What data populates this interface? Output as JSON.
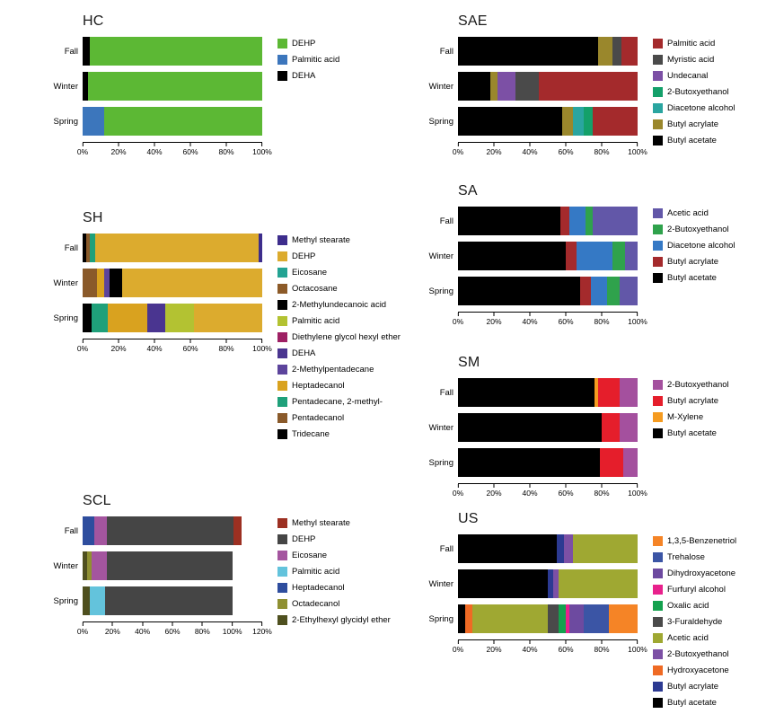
{
  "figure": {
    "background": "#ffffff"
  },
  "chart_data": [
    {
      "id": "HC",
      "type": "bar",
      "orientation": "horizontal-stacked",
      "title": "HC",
      "categories": [
        "Fall",
        "Winter",
        "Spring"
      ],
      "xlim": [
        0,
        100
      ],
      "xticks": [
        0,
        20,
        40,
        60,
        80,
        100
      ],
      "tick_suffix": "%",
      "legend_position": "right",
      "legend": [
        {
          "name": "DEHP",
          "color": "#5cb834"
        },
        {
          "name": "Palmitic acid",
          "color": "#3c76bc"
        },
        {
          "name": "DEHA",
          "color": "#000000"
        }
      ],
      "bars": [
        {
          "category": "Fall",
          "segments": [
            {
              "name": "DEHA",
              "value": 4
            },
            {
              "name": "DEHP",
              "value": 96
            }
          ]
        },
        {
          "category": "Winter",
          "segments": [
            {
              "name": "DEHA",
              "value": 3
            },
            {
              "name": "DEHP",
              "value": 97
            }
          ]
        },
        {
          "category": "Spring",
          "segments": [
            {
              "name": "Palmitic acid",
              "value": 12
            },
            {
              "name": "DEHP",
              "value": 88
            }
          ]
        }
      ]
    },
    {
      "id": "SAE",
      "type": "bar",
      "orientation": "horizontal-stacked",
      "title": "SAE",
      "categories": [
        "Fall",
        "Winter",
        "Spring"
      ],
      "xlim": [
        0,
        100
      ],
      "xticks": [
        0,
        20,
        40,
        60,
        80,
        100
      ],
      "tick_suffix": "%",
      "legend_position": "right",
      "legend": [
        {
          "name": "Palmitic acid",
          "color": "#a42a2c"
        },
        {
          "name": "Myristic acid",
          "color": "#4a4a4a"
        },
        {
          "name": "Undecanal",
          "color": "#7c50a5"
        },
        {
          "name": "2-Butoxyethanol",
          "color": "#14a06a"
        },
        {
          "name": "Diacetone alcohol",
          "color": "#2aa5a0"
        },
        {
          "name": "Butyl acrylate",
          "color": "#9a872c"
        },
        {
          "name": "Butyl acetate",
          "color": "#000000"
        }
      ],
      "bars": [
        {
          "category": "Fall",
          "segments": [
            {
              "name": "Butyl acetate",
              "value": 78
            },
            {
              "name": "Butyl acrylate",
              "value": 8
            },
            {
              "name": "Myristic acid",
              "value": 5
            },
            {
              "name": "Palmitic acid",
              "value": 9
            }
          ]
        },
        {
          "category": "Winter",
          "segments": [
            {
              "name": "Butyl acetate",
              "value": 18
            },
            {
              "name": "Butyl acrylate",
              "value": 4
            },
            {
              "name": "Undecanal",
              "value": 10
            },
            {
              "name": "Myristic acid",
              "value": 13
            },
            {
              "name": "Palmitic acid",
              "value": 55
            }
          ]
        },
        {
          "category": "Spring",
          "segments": [
            {
              "name": "Butyl acetate",
              "value": 58
            },
            {
              "name": "Butyl acrylate",
              "value": 6
            },
            {
              "name": "Diacetone alcohol",
              "value": 6
            },
            {
              "name": "2-Butoxyethanol",
              "value": 5
            },
            {
              "name": "Palmitic acid",
              "value": 25
            }
          ]
        }
      ]
    },
    {
      "id": "SH",
      "type": "bar",
      "orientation": "horizontal-stacked",
      "title": "SH",
      "categories": [
        "Fall",
        "Winter",
        "Spring"
      ],
      "xlim": [
        0,
        100
      ],
      "xticks": [
        0,
        20,
        40,
        60,
        80,
        100
      ],
      "tick_suffix": "%",
      "legend_position": "right",
      "legend": [
        {
          "name": "Methyl stearate",
          "color": "#3d2d8c"
        },
        {
          "name": "DEHP",
          "color": "#dcab2e"
        },
        {
          "name": "Eicosane",
          "color": "#23a393"
        },
        {
          "name": "Octacosane",
          "color": "#8c5a28"
        },
        {
          "name": "2-Methylundecanoic acid",
          "color": "#000000"
        },
        {
          "name": "Palmitic acid",
          "color": "#b3c232"
        },
        {
          "name": "Diethylene glycol hexyl ether",
          "color": "#9e2064"
        },
        {
          "name": "DEHA",
          "color": "#4a3590"
        },
        {
          "name": "2-Methylpentadecane",
          "color": "#5c449c"
        },
        {
          "name": "Heptadecanol",
          "color": "#d9a21f"
        },
        {
          "name": "Pentadecane, 2-methyl-",
          "color": "#1fa07a"
        },
        {
          "name": "Pentadecanol",
          "color": "#8a5a2a"
        },
        {
          "name": "Tridecane",
          "color": "#000000"
        }
      ],
      "bars": [
        {
          "category": "Fall",
          "segments": [
            {
              "name": "Tridecane",
              "value": 2
            },
            {
              "name": "Pentadecanol",
              "value": 2
            },
            {
              "name": "Pentadecane, 2-methyl-",
              "value": 3
            },
            {
              "name": "DEHP",
              "value": 91
            },
            {
              "name": "Methyl stearate",
              "value": 2
            }
          ]
        },
        {
          "category": "Winter",
          "segments": [
            {
              "name": "Pentadecanol",
              "value": 8
            },
            {
              "name": "Heptadecanol",
              "value": 4
            },
            {
              "name": "2-Methylpentadecane",
              "value": 3
            },
            {
              "name": "2-Methylundecanoic acid",
              "value": 7
            },
            {
              "name": "DEHP",
              "value": 78
            }
          ]
        },
        {
          "category": "Spring",
          "segments": [
            {
              "name": "Tridecane",
              "value": 5
            },
            {
              "name": "Pentadecane, 2-methyl-",
              "value": 9
            },
            {
              "name": "Heptadecanol",
              "value": 22
            },
            {
              "name": "DEHA",
              "value": 10
            },
            {
              "name": "Palmitic acid",
              "value": 16
            },
            {
              "name": "DEHP",
              "value": 38
            }
          ]
        }
      ]
    },
    {
      "id": "SA",
      "type": "bar",
      "orientation": "horizontal-stacked",
      "title": "SA",
      "categories": [
        "Fall",
        "Winter",
        "Spring"
      ],
      "xlim": [
        0,
        100
      ],
      "xticks": [
        0,
        20,
        40,
        60,
        80,
        100
      ],
      "tick_suffix": "%",
      "legend_position": "right",
      "legend": [
        {
          "name": "Acetic acid",
          "color": "#6257a8"
        },
        {
          "name": "2-Butoxyethanol",
          "color": "#2fa24c"
        },
        {
          "name": "Diacetone alcohol",
          "color": "#3579c5"
        },
        {
          "name": "Butyl acrylate",
          "color": "#a42a2c"
        },
        {
          "name": "Butyl acetate",
          "color": "#000000"
        }
      ],
      "bars": [
        {
          "category": "Fall",
          "segments": [
            {
              "name": "Butyl acetate",
              "value": 57
            },
            {
              "name": "Butyl acrylate",
              "value": 5
            },
            {
              "name": "Diacetone alcohol",
              "value": 9
            },
            {
              "name": "2-Butoxyethanol",
              "value": 4
            },
            {
              "name": "Acetic acid",
              "value": 25
            }
          ]
        },
        {
          "category": "Winter",
          "segments": [
            {
              "name": "Butyl acetate",
              "value": 60
            },
            {
              "name": "Butyl acrylate",
              "value": 6
            },
            {
              "name": "Diacetone alcohol",
              "value": 20
            },
            {
              "name": "2-Butoxyethanol",
              "value": 7
            },
            {
              "name": "Acetic acid",
              "value": 7
            }
          ]
        },
        {
          "category": "Spring",
          "segments": [
            {
              "name": "Butyl acetate",
              "value": 68
            },
            {
              "name": "Butyl acrylate",
              "value": 6
            },
            {
              "name": "Diacetone alcohol",
              "value": 9
            },
            {
              "name": "2-Butoxyethanol",
              "value": 7
            },
            {
              "name": "Acetic acid",
              "value": 10
            }
          ]
        }
      ]
    },
    {
      "id": "SCL",
      "type": "bar",
      "orientation": "horizontal-stacked",
      "title": "SCL",
      "categories": [
        "Fall",
        "Winter",
        "Spring"
      ],
      "xlim": [
        0,
        120
      ],
      "xticks": [
        0,
        20,
        40,
        60,
        80,
        100,
        120
      ],
      "tick_suffix": "%",
      "legend_position": "right",
      "legend": [
        {
          "name": "Methyl stearate",
          "color": "#9c3022"
        },
        {
          "name": "DEHP",
          "color": "#454545"
        },
        {
          "name": "Eicosane",
          "color": "#a4559f"
        },
        {
          "name": "Palmitic acid",
          "color": "#63c3dc"
        },
        {
          "name": "Heptadecanol",
          "color": "#2e4d9e"
        },
        {
          "name": "Octadecanol",
          "color": "#8f9032"
        },
        {
          "name": "2-Ethylhexyl glycidyl ether",
          "color": "#4f501f"
        }
      ],
      "bars": [
        {
          "category": "Fall",
          "segments": [
            {
              "name": "Heptadecanol",
              "value": 8
            },
            {
              "name": "Eicosane",
              "value": 8
            },
            {
              "name": "DEHP",
              "value": 85
            },
            {
              "name": "Methyl stearate",
              "value": 5
            }
          ]
        },
        {
          "category": "Winter",
          "segments": [
            {
              "name": "2-Ethylhexyl glycidyl ether",
              "value": 3
            },
            {
              "name": "Octadecanol",
              "value": 3
            },
            {
              "name": "Eicosane",
              "value": 10
            },
            {
              "name": "DEHP",
              "value": 84
            }
          ]
        },
        {
          "category": "Spring",
          "segments": [
            {
              "name": "2-Ethylhexyl glycidyl ether",
              "value": 5
            },
            {
              "name": "Palmitic acid",
              "value": 10
            },
            {
              "name": "DEHP",
              "value": 85
            }
          ]
        }
      ]
    },
    {
      "id": "SM",
      "type": "bar",
      "orientation": "horizontal-stacked",
      "title": "SM",
      "categories": [
        "Fall",
        "Winter",
        "Spring"
      ],
      "xlim": [
        0,
        100
      ],
      "xticks": [
        0,
        20,
        40,
        60,
        80,
        100
      ],
      "tick_suffix": "%",
      "legend_position": "right",
      "legend": [
        {
          "name": "2-Butoxyethanol",
          "color": "#a4509e"
        },
        {
          "name": "Butyl acrylate",
          "color": "#e51e2b"
        },
        {
          "name": "M-Xylene",
          "color": "#f59b20"
        },
        {
          "name": "Butyl acetate",
          "color": "#000000"
        }
      ],
      "bars": [
        {
          "category": "Fall",
          "segments": [
            {
              "name": "Butyl acetate",
              "value": 76
            },
            {
              "name": "M-Xylene",
              "value": 2
            },
            {
              "name": "Butyl acrylate",
              "value": 12
            },
            {
              "name": "2-Butoxyethanol",
              "value": 10
            }
          ]
        },
        {
          "category": "Winter",
          "segments": [
            {
              "name": "Butyl acetate",
              "value": 80
            },
            {
              "name": "Butyl acrylate",
              "value": 10
            },
            {
              "name": "2-Butoxyethanol",
              "value": 10
            }
          ]
        },
        {
          "category": "Spring",
          "segments": [
            {
              "name": "Butyl acetate",
              "value": 79
            },
            {
              "name": "Butyl acrylate",
              "value": 13
            },
            {
              "name": "2-Butoxyethanol",
              "value": 8
            }
          ]
        }
      ]
    },
    {
      "id": "US",
      "type": "bar",
      "orientation": "horizontal-stacked",
      "title": "US",
      "categories": [
        "Fall",
        "Winter",
        "Spring"
      ],
      "xlim": [
        0,
        100
      ],
      "xticks": [
        0,
        20,
        40,
        60,
        80,
        100
      ],
      "tick_suffix": "%",
      "legend_position": "right",
      "legend": [
        {
          "name": "1,3,5-Benzenetriol",
          "color": "#f58426"
        },
        {
          "name": "Trehalose",
          "color": "#3b55a5"
        },
        {
          "name": "Dihydroxyacetone",
          "color": "#6d4aa0"
        },
        {
          "name": "Furfuryl alcohol",
          "color": "#e8218c"
        },
        {
          "name": "Oxalic acid",
          "color": "#14a14e"
        },
        {
          "name": "3-Furaldehyde",
          "color": "#4a4a4a"
        },
        {
          "name": "Acetic acid",
          "color": "#9fa832"
        },
        {
          "name": "2-Butoxyethanol",
          "color": "#7c50a5"
        },
        {
          "name": "Hydroxyacetone",
          "color": "#ef6a24"
        },
        {
          "name": "Butyl acrylate",
          "color": "#2c3a92"
        },
        {
          "name": "Butyl acetate",
          "color": "#000000"
        }
      ],
      "bars": [
        {
          "category": "Fall",
          "segments": [
            {
              "name": "Butyl acetate",
              "value": 55
            },
            {
              "name": "Butyl acrylate",
              "value": 4
            },
            {
              "name": "2-Butoxyethanol",
              "value": 5
            },
            {
              "name": "Acetic acid",
              "value": 36
            }
          ]
        },
        {
          "category": "Winter",
          "segments": [
            {
              "name": "Butyl acetate",
              "value": 50
            },
            {
              "name": "Butyl acrylate",
              "value": 3
            },
            {
              "name": "2-Butoxyethanol",
              "value": 3
            },
            {
              "name": "Acetic acid",
              "value": 44
            }
          ]
        },
        {
          "category": "Spring",
          "segments": [
            {
              "name": "Butyl acetate",
              "value": 4
            },
            {
              "name": "Hydroxyacetone",
              "value": 4
            },
            {
              "name": "Acetic acid",
              "value": 42
            },
            {
              "name": "3-Furaldehyde",
              "value": 6
            },
            {
              "name": "Oxalic acid",
              "value": 4
            },
            {
              "name": "Furfuryl alcohol",
              "value": 2
            },
            {
              "name": "Dihydroxyacetone",
              "value": 8
            },
            {
              "name": "Trehalose",
              "value": 14
            },
            {
              "name": "1,3,5-Benzenetriol",
              "value": 16
            }
          ]
        }
      ]
    }
  ]
}
